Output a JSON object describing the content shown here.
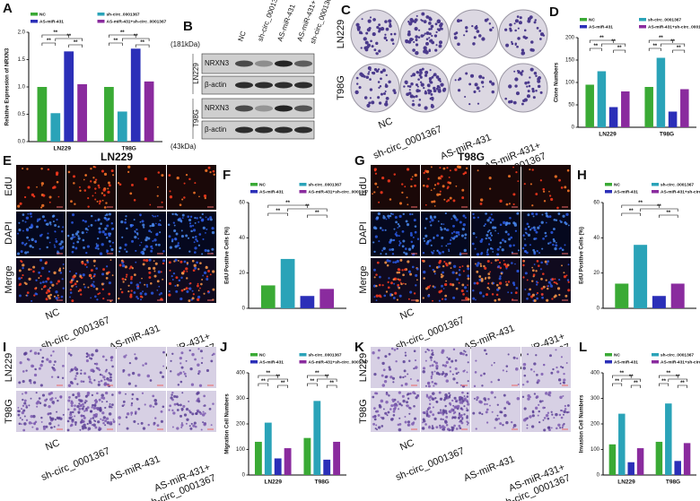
{
  "panel_labels": [
    "A",
    "B",
    "C",
    "D",
    "E",
    "F",
    "G",
    "H",
    "I",
    "J",
    "K",
    "L"
  ],
  "conditions": [
    [
      "NC"
    ],
    [
      "sh-circ_0001367"
    ],
    [
      "AS-miR-431"
    ],
    [
      "AS-miR-431+",
      "sh-circ_0001367"
    ]
  ],
  "cell_lines": [
    "LN229",
    "T98G"
  ],
  "blot": {
    "markers": [
      "(181kDa)",
      "(43kDa)"
    ],
    "proteins": [
      "NRXN3",
      "β-actin"
    ]
  },
  "stains": [
    "EdU",
    "DAPI",
    "Merge"
  ],
  "chart_data": [
    {
      "type": "bar",
      "ylabel": "Relative Expression of NRXN3",
      "categories": [
        "LN229",
        "T98G"
      ],
      "series": [
        {
          "name": "NC",
          "color": "#3aaa35",
          "values": [
            1.0,
            1.0
          ]
        },
        {
          "name": "sh-circ_0001367",
          "color": "#2aa3b8",
          "values": [
            0.52,
            0.55
          ]
        },
        {
          "name": "AS-miR-431",
          "color": "#2b2fb8",
          "values": [
            1.65,
            1.7
          ]
        },
        {
          "name": "AS-miR-431+sh-circ_0001367",
          "color": "#8a2b9e",
          "values": [
            1.05,
            1.1
          ]
        }
      ],
      "ylim": [
        0,
        2
      ],
      "yticks": [
        {
          "value": 0,
          "label": "0.0"
        },
        {
          "value": 0.5,
          "label": "0.5"
        },
        {
          "value": 1,
          "label": "1.0"
        },
        {
          "value": 1.5,
          "label": "1.5"
        },
        {
          "value": 2,
          "label": "2.0"
        }
      ],
      "significance": "**"
    },
    {
      "type": "bar",
      "ylabel": "Clone Numbers",
      "categories": [
        "LN229",
        "T98G"
      ],
      "series": [
        {
          "name": "NC",
          "color": "#3aaa35",
          "values": [
            95,
            90
          ]
        },
        {
          "name": "sh-circ_0001367",
          "color": "#2aa3b8",
          "values": [
            125,
            155
          ]
        },
        {
          "name": "AS-miR-431",
          "color": "#2b2fb8",
          "values": [
            45,
            35
          ]
        },
        {
          "name": "AS-miR-431+sh-circ_0001367",
          "color": "#8a2b9e",
          "values": [
            80,
            85
          ]
        }
      ],
      "ylim": [
        0,
        200
      ],
      "yticks": [
        0,
        50,
        100,
        150,
        200
      ],
      "significance": "**"
    },
    {
      "type": "bar",
      "ylabel": "EdU Positive Cells (%)",
      "series": [
        {
          "name": "NC",
          "color": "#3aaa35",
          "values": [
            13
          ]
        },
        {
          "name": "sh-circ_0001367",
          "color": "#2aa3b8",
          "values": [
            28
          ]
        },
        {
          "name": "AS-miR-431",
          "color": "#2b2fb8",
          "values": [
            7
          ]
        },
        {
          "name": "AS-miR-431+sh-circ_0001367",
          "color": "#8a2b9e",
          "values": [
            11
          ]
        }
      ],
      "ylim": [
        0,
        60
      ],
      "yticks": [
        0,
        20,
        40,
        60
      ],
      "significance": "**"
    },
    {
      "type": "bar",
      "ylabel": "EdU Positive Cells (%)",
      "series": [
        {
          "name": "NC",
          "color": "#3aaa35",
          "values": [
            14
          ]
        },
        {
          "name": "sh-circ_0001367",
          "color": "#2aa3b8",
          "values": [
            36
          ]
        },
        {
          "name": "AS-miR-431",
          "color": "#2b2fb8",
          "values": [
            7
          ]
        },
        {
          "name": "AS-miR-431+sh-circ_0001367",
          "color": "#8a2b9e",
          "values": [
            14
          ]
        }
      ],
      "ylim": [
        0,
        60
      ],
      "yticks": [
        0,
        20,
        40,
        60
      ],
      "significance": "**"
    },
    {
      "type": "bar",
      "ylabel": "Migration Cell Numbers",
      "categories": [
        "LN229",
        "T98G"
      ],
      "series": [
        {
          "name": "NC",
          "color": "#3aaa35",
          "values": [
            130,
            145
          ]
        },
        {
          "name": "sh-circ_0001367",
          "color": "#2aa3b8",
          "values": [
            205,
            290
          ]
        },
        {
          "name": "AS-miR-431",
          "color": "#2b2fb8",
          "values": [
            65,
            60
          ]
        },
        {
          "name": "AS-miR-431+sh-circ_0001367",
          "color": "#8a2b9e",
          "values": [
            105,
            130
          ]
        }
      ],
      "ylim": [
        0,
        400
      ],
      "yticks": [
        0,
        100,
        200,
        300,
        400
      ],
      "significance": "**"
    },
    {
      "type": "bar",
      "ylabel": "Invasion Cell Numbers",
      "categories": [
        "LN229",
        "T98G"
      ],
      "series": [
        {
          "name": "NC",
          "color": "#3aaa35",
          "values": [
            120,
            130
          ]
        },
        {
          "name": "sh-circ_0001367",
          "color": "#2aa3b8",
          "values": [
            240,
            280
          ]
        },
        {
          "name": "AS-miR-431",
          "color": "#2b2fb8",
          "values": [
            50,
            55
          ]
        },
        {
          "name": "AS-miR-431+sh-circ_0001367",
          "color": "#8a2b9e",
          "values": [
            105,
            125
          ]
        }
      ],
      "ylim": [
        0,
        400
      ],
      "yticks": [
        0,
        100,
        200,
        300,
        400
      ],
      "significance": "**"
    }
  ]
}
